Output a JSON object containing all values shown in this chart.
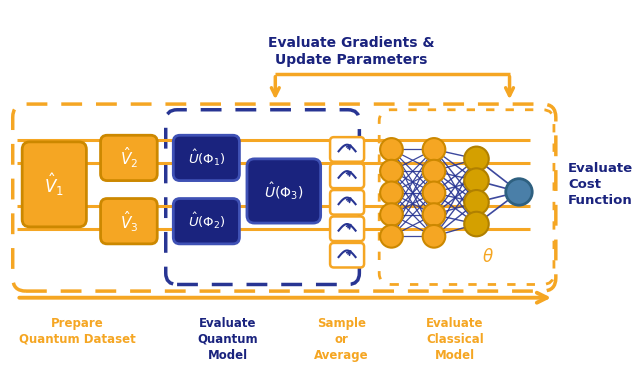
{
  "orange": "#F5A623",
  "dark_orange": "#CC8800",
  "blue": "#1A237E",
  "mid_blue": "#283593",
  "teal": "#4A7FA8",
  "bg": "#FFFFFF",
  "figsize": [
    6.4,
    3.81
  ],
  "dpi": 100,
  "labels": {
    "prepare": "Prepare\nQuantum Dataset",
    "evaluate_qm": "Evaluate\nQuantum\nModel",
    "sample": "Sample\nor\nAverage",
    "evaluate_cm": "Evaluate\nClassical\nModel",
    "cost": "Evaluate\nCost\nFunction",
    "gradients": "Evaluate Gradients &\nUpdate Parameters",
    "theta": "θ",
    "v1": "$\\hat{V}_1$",
    "v2": "$\\hat{V}_2$",
    "v3": "$\\hat{V}_3$",
    "u_phi1": "$\\hat{U}(\\Phi_1)$",
    "u_phi2": "$\\hat{U}(\\Phi_2)$",
    "u_phi3": "$\\hat{U}(\\Phi_3)$"
  }
}
